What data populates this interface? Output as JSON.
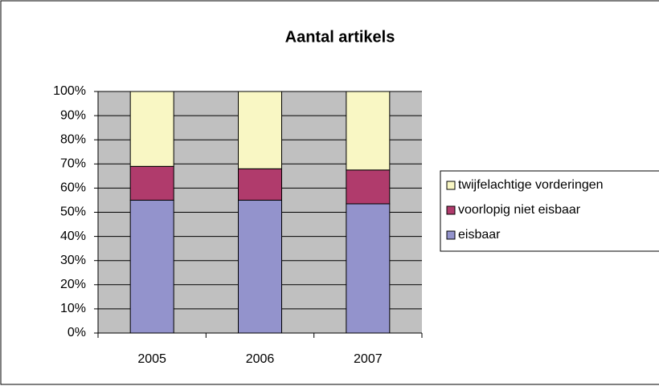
{
  "chart_data": {
    "type": "stacked_bar",
    "title": "Aantal artikels",
    "categories": [
      "2005",
      "2006",
      "2007"
    ],
    "series": [
      {
        "name": "eisbaar",
        "color": "#9393cc",
        "values": [
          55,
          55,
          53.5
        ]
      },
      {
        "name": "voorlopig niet eisbaar",
        "color": "#b03b6c",
        "values": [
          14,
          13,
          14
        ]
      },
      {
        "name": "twijfelachtige vorderingen",
        "color": "#f9f7c4",
        "values": [
          31,
          32,
          32.5
        ]
      }
    ],
    "ylim": [
      0,
      100
    ],
    "yticks": [
      {
        "value": 0,
        "label": "0%"
      },
      {
        "value": 10,
        "label": "10%"
      },
      {
        "value": 20,
        "label": "20%"
      },
      {
        "value": 30,
        "label": "30%"
      },
      {
        "value": 40,
        "label": "40%"
      },
      {
        "value": 50,
        "label": "50%"
      },
      {
        "value": 60,
        "label": "60%"
      },
      {
        "value": 70,
        "label": "70%"
      },
      {
        "value": 80,
        "label": "80%"
      },
      {
        "value": 90,
        "label": "90%"
      },
      {
        "value": 100,
        "label": "100%"
      }
    ],
    "grid": true,
    "legend": "right"
  }
}
